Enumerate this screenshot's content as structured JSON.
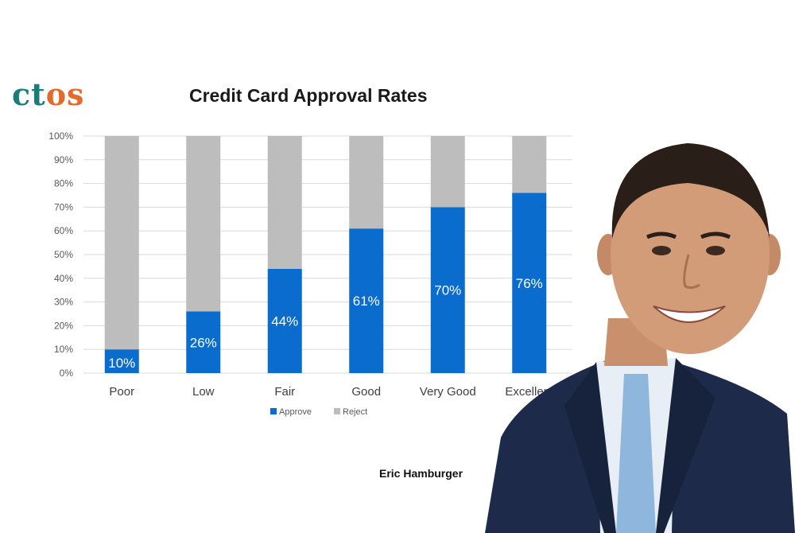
{
  "logo": {
    "text_part1": "ct",
    "text_part2": "os"
  },
  "caption": "Eric Hamburger",
  "colors": {
    "approve": "#0a6ccd",
    "reject": "#bdbdbd",
    "logo_teal": "#1b7d7a",
    "logo_orange": "#e36a2c"
  },
  "chart_data": {
    "type": "bar",
    "stacked": true,
    "title": "Credit Card Approval Rates",
    "xlabel": "",
    "ylabel": "",
    "categories": [
      "Poor",
      "Low",
      "Fair",
      "Good",
      "Very Good",
      "Excellent"
    ],
    "series": [
      {
        "name": "Approve",
        "values": [
          10,
          26,
          44,
          61,
          70,
          76
        ]
      },
      {
        "name": "Reject",
        "values": [
          90,
          74,
          56,
          39,
          30,
          24
        ]
      }
    ],
    "data_labels": [
      "10%",
      "26%",
      "44%",
      "61%",
      "70%",
      "76%"
    ],
    "yticks": [
      "0%",
      "10%",
      "20%",
      "30%",
      "40%",
      "50%",
      "60%",
      "70%",
      "80%",
      "90%",
      "100%"
    ],
    "ylim": [
      0,
      100
    ],
    "grid": true,
    "legend": "bottom"
  }
}
